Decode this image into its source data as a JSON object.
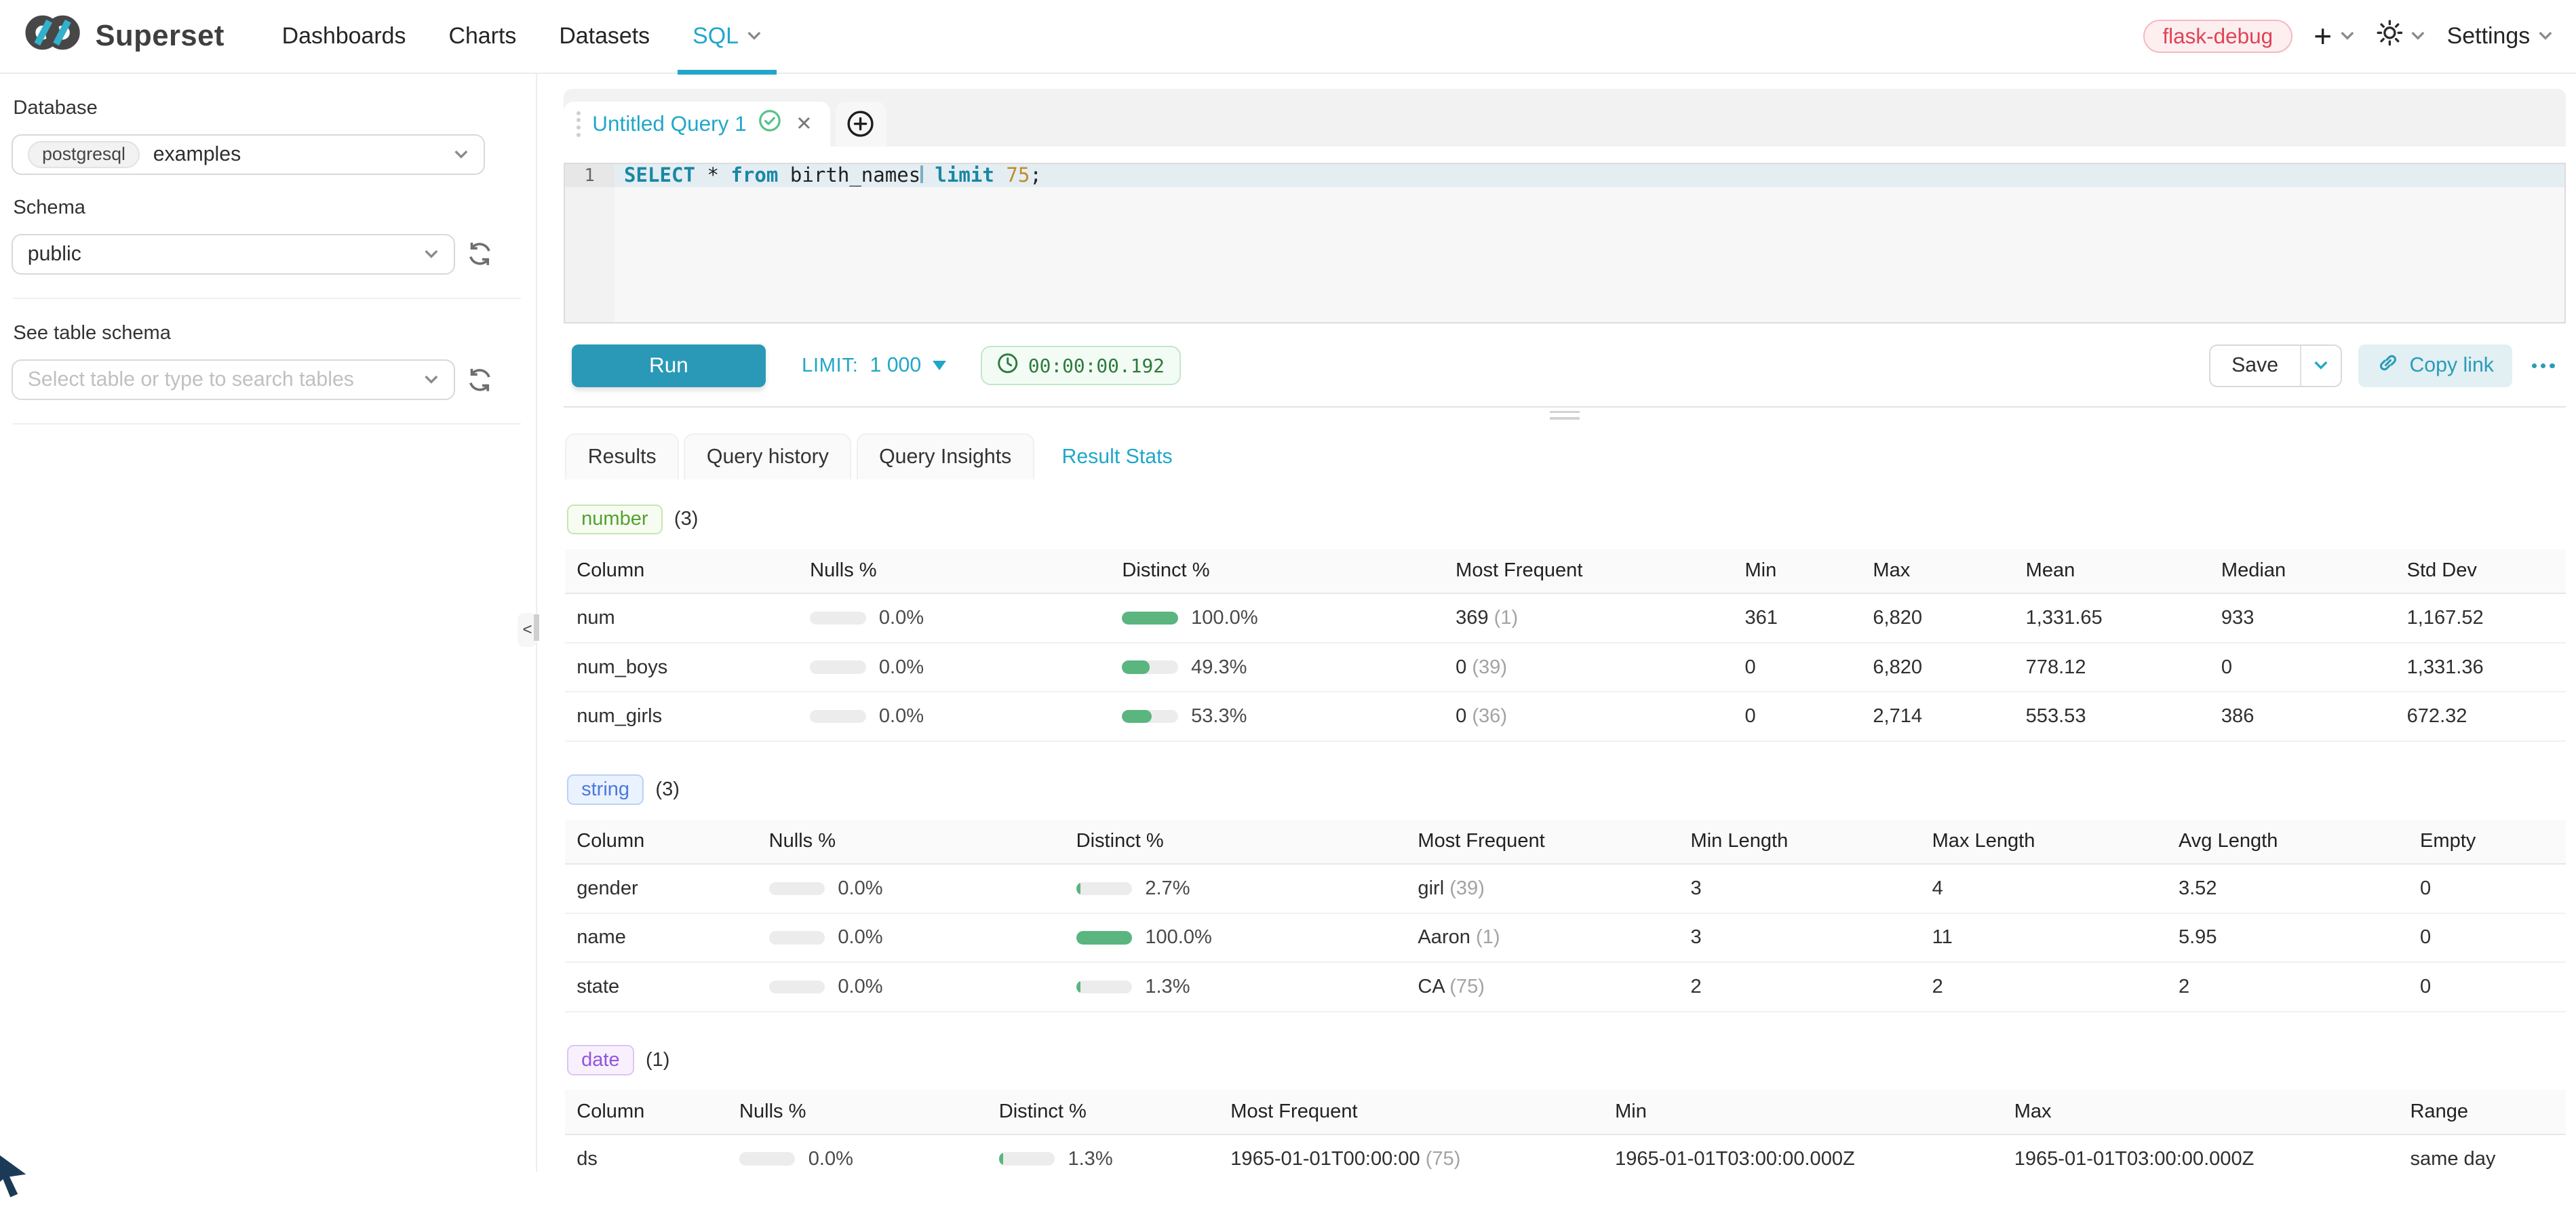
{
  "navbar": {
    "brand": "Superset",
    "items": [
      {
        "label": "Dashboards",
        "active": false,
        "caret": false
      },
      {
        "label": "Charts",
        "active": false,
        "caret": false
      },
      {
        "label": "Datasets",
        "active": false,
        "caret": false
      },
      {
        "label": "SQL",
        "active": true,
        "caret": true
      }
    ],
    "env_badge": "flask-debug",
    "settings_label": "Settings"
  },
  "sidebar": {
    "database_label": "Database",
    "database_engine": "postgresql",
    "database_name": "examples",
    "schema_label": "Schema",
    "schema_value": "public",
    "table_label": "See table schema",
    "table_placeholder": "Select table or type to search tables",
    "collapse_glyph": "<"
  },
  "editor": {
    "tab_title": "Untitled Query 1",
    "line_number": "1",
    "sql_tokens": [
      {
        "text": "SELECT",
        "type": "kw"
      },
      {
        "text": " * ",
        "type": "plain"
      },
      {
        "text": "from",
        "type": "kw"
      },
      {
        "text": " birth_names",
        "type": "plain"
      },
      {
        "text": "",
        "type": "caret"
      },
      {
        "text": " ",
        "type": "plain"
      },
      {
        "text": "limit",
        "type": "kw"
      },
      {
        "text": " ",
        "type": "plain"
      },
      {
        "text": "75",
        "type": "num"
      },
      {
        "text": ";",
        "type": "plain"
      }
    ]
  },
  "toolbar": {
    "run_label": "Run",
    "limit_label": "LIMIT:",
    "limit_value": "1 000",
    "timer": "00:00:00.192",
    "save_label": "Save",
    "copy_link_label": "Copy link"
  },
  "south": {
    "tabs": [
      {
        "label": "Results",
        "active": false
      },
      {
        "label": "Query history",
        "active": false
      },
      {
        "label": "Query Insights",
        "active": false
      },
      {
        "label": "Result Stats",
        "active": true
      }
    ]
  },
  "sections": [
    {
      "badge": "number",
      "count": "(3)",
      "colors": {
        "text": "#53a031",
        "bg": "#f7fcf2",
        "border": "#c4e7b0"
      },
      "headers": [
        "Column",
        "Nulls %",
        "Distinct %",
        "Most Frequent",
        "Min",
        "Max",
        "Mean",
        "Median",
        "Std Dev"
      ],
      "rows": [
        {
          "column": "num",
          "nulls": {
            "pct": 0,
            "label": "0.0%"
          },
          "distinct": {
            "pct": 100,
            "label": "100.0%"
          },
          "most_frequent": {
            "value": "369",
            "count": "(1)"
          },
          "values": [
            "361",
            "6,820",
            "1,331.65",
            "933",
            "1,167.52"
          ]
        },
        {
          "column": "num_boys",
          "nulls": {
            "pct": 0,
            "label": "0.0%"
          },
          "distinct": {
            "pct": 49.3,
            "label": "49.3%"
          },
          "most_frequent": {
            "value": "0",
            "count": "(39)"
          },
          "values": [
            "0",
            "6,820",
            "778.12",
            "0",
            "1,331.36"
          ]
        },
        {
          "column": "num_girls",
          "nulls": {
            "pct": 0,
            "label": "0.0%"
          },
          "distinct": {
            "pct": 53.3,
            "label": "53.3%"
          },
          "most_frequent": {
            "value": "0",
            "count": "(36)"
          },
          "values": [
            "0",
            "2,714",
            "553.53",
            "386",
            "672.32"
          ]
        }
      ]
    },
    {
      "badge": "string",
      "count": "(3)",
      "colors": {
        "text": "#4a79e0",
        "bg": "#eaf2fe",
        "border": "#b9d2f7"
      },
      "headers": [
        "Column",
        "Nulls %",
        "Distinct %",
        "Most Frequent",
        "Min Length",
        "Max Length",
        "Avg Length",
        "Empty"
      ],
      "rows": [
        {
          "column": "gender",
          "nulls": {
            "pct": 0,
            "label": "0.0%"
          },
          "distinct": {
            "pct": 2.7,
            "label": "2.7%"
          },
          "most_frequent": {
            "value": "girl",
            "count": "(39)"
          },
          "values": [
            "3",
            "4",
            "3.52",
            "0"
          ]
        },
        {
          "column": "name",
          "nulls": {
            "pct": 0,
            "label": "0.0%"
          },
          "distinct": {
            "pct": 100,
            "label": "100.0%"
          },
          "most_frequent": {
            "value": "Aaron",
            "count": "(1)"
          },
          "values": [
            "3",
            "11",
            "5.95",
            "0"
          ]
        },
        {
          "column": "state",
          "nulls": {
            "pct": 0,
            "label": "0.0%"
          },
          "distinct": {
            "pct": 1.3,
            "label": "1.3%"
          },
          "most_frequent": {
            "value": "CA",
            "count": "(75)"
          },
          "values": [
            "2",
            "2",
            "2",
            "0"
          ]
        }
      ]
    },
    {
      "badge": "date",
      "count": "(1)",
      "colors": {
        "text": "#9254de",
        "bg": "#f8f1fd",
        "border": "#ddc5f2"
      },
      "headers": [
        "Column",
        "Nulls %",
        "Distinct %",
        "Most Frequent",
        "Min",
        "Max",
        "Range"
      ],
      "rows": [
        {
          "column": "ds",
          "nulls": {
            "pct": 0,
            "label": "0.0%"
          },
          "distinct": {
            "pct": 1.3,
            "label": "1.3%"
          },
          "most_frequent": {
            "value": "1965-01-01T00:00:00",
            "count": "(75)"
          },
          "values": [
            "1965-01-01T03:00:00.000Z",
            "1965-01-01T03:00:00.000Z",
            "same day"
          ]
        }
      ]
    }
  ]
}
